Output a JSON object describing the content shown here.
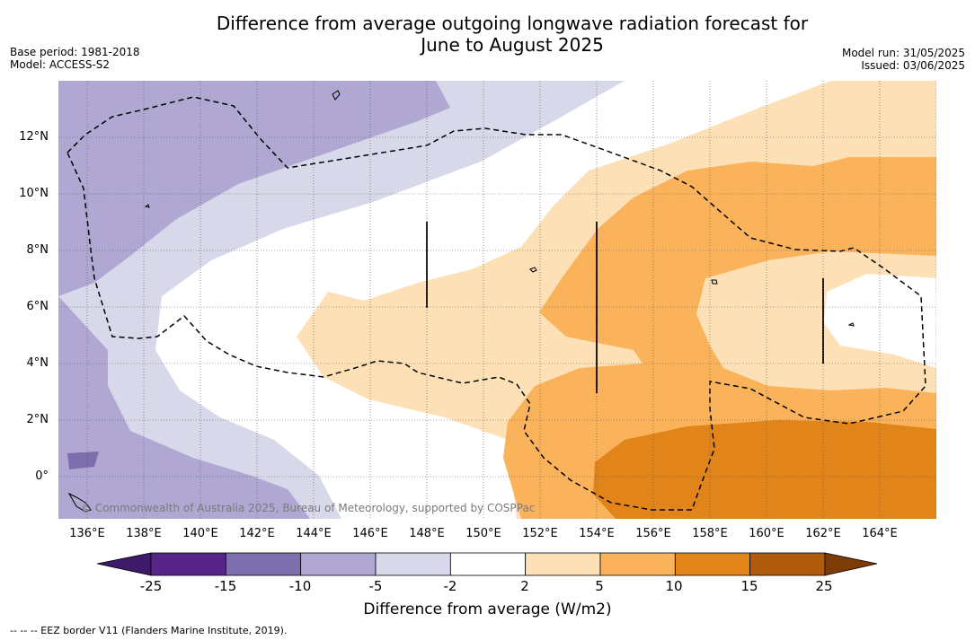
{
  "title_line1": "Difference from average outgoing longwave radiation forecast for",
  "title_line2": "June to August 2025",
  "meta_left": [
    "Base period: 1981-2018",
    "Model: ACCESS-S2"
  ],
  "meta_right": [
    "Model run: 31/05/2025",
    "Issued: 03/06/2025"
  ],
  "lat_labels": [
    "12°N",
    "10°N",
    "8°N",
    "6°N",
    "4°N",
    "2°N",
    "0°"
  ],
  "lon_labels": [
    "136°E",
    "138°E",
    "140°E",
    "142°E",
    "144°E",
    "146°E",
    "148°E",
    "150°E",
    "152°E",
    "154°E",
    "156°E",
    "158°E",
    "160°E",
    "162°E",
    "164°E"
  ],
  "colorbar": {
    "ticks": [
      "-25",
      "-15",
      "-10",
      "-5",
      "-2",
      "2",
      "5",
      "10",
      "15",
      "25"
    ],
    "colors": [
      "#3f1a6b",
      "#57258a",
      "#7d6fae",
      "#b0a8d2",
      "#d7d8ea",
      "#ffffff",
      "#fde0b6",
      "#fbb35b",
      "#e1841a",
      "#b05c0c",
      "#7c3c05"
    ],
    "label": "Difference from average (W/m2)"
  },
  "copyright": "© Commonwealth of Australia 2025, Bureau of Meteorology, supported by COSPPac",
  "footnote": "-- -- -- EEZ border V11 (Flanders Marine Institute, 2019)."
}
